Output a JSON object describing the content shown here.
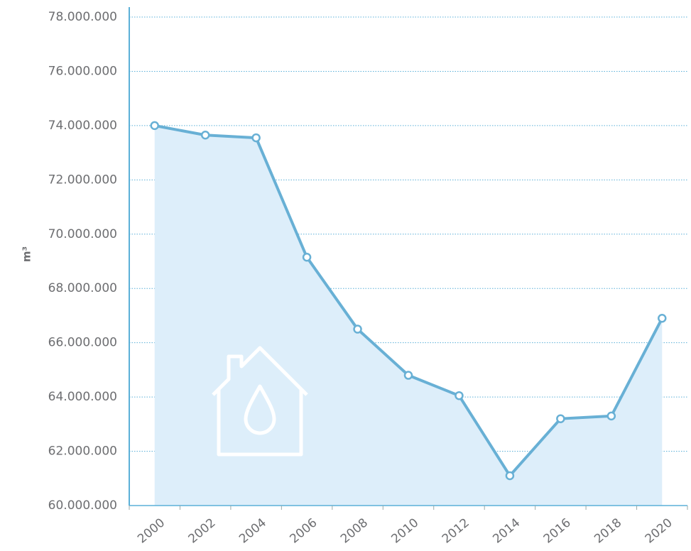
{
  "chart_data": {
    "type": "area",
    "y_label": "m³",
    "categories": [
      "2000",
      "2002",
      "2004",
      "2006",
      "2008",
      "2010",
      "2012",
      "2014",
      "2016",
      "2018",
      "2020"
    ],
    "values": [
      74000000,
      73650000,
      73550000,
      69150000,
      66500000,
      64800000,
      64050000,
      61100000,
      63200000,
      63300000,
      66900000
    ],
    "color": "#68b0d5",
    "fill_color": "#ddeefa",
    "ylim": [
      60000000,
      78000000
    ],
    "yticks": [
      {
        "value": 60000000,
        "label": "60.000.000"
      },
      {
        "value": 62000000,
        "label": "62.000.000"
      },
      {
        "value": 64000000,
        "label": "64.000.000"
      },
      {
        "value": 66000000,
        "label": "66.000.000"
      },
      {
        "value": 68000000,
        "label": "68.000.000"
      },
      {
        "value": 70000000,
        "label": "70.000.000"
      },
      {
        "value": 72000000,
        "label": "72.000.000"
      },
      {
        "value": 74000000,
        "label": "74.000.000"
      },
      {
        "value": 76000000,
        "label": "76.000.000"
      },
      {
        "value": 78000000,
        "label": "78.000.000"
      }
    ],
    "grid": true
  }
}
